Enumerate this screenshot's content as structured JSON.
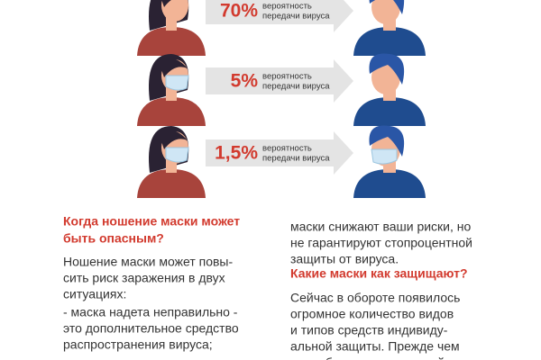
{
  "rows": [
    {
      "percent": "70%",
      "label": [
        "вероятность",
        "передачи вируса"
      ]
    },
    {
      "percent": "5%",
      "label": [
        "вероятность",
        "передачи вируса"
      ]
    },
    {
      "percent": "1,5%",
      "label": [
        "вероятность",
        "передачи вируса"
      ]
    }
  ],
  "left_column": {
    "heading": [
      "Когда ношение маски может",
      "быть опасным?"
    ],
    "paragraphs": [
      [
        "Ношение маски может повы-",
        "сить риск заражения в двух",
        "ситуациях:"
      ],
      [
        "- маска надета неправильно -",
        "это дополнительное средство",
        "распространения вируса;"
      ]
    ]
  },
  "right_column": {
    "intro": [
      "маски снижают ваши риски, но",
      "не гарантируют стопроцентной",
      "защиты от вируса."
    ],
    "heading": "Какие маски как защищают?",
    "paragraph": [
      "Сейчас в обороте появилось",
      "огромное количество видов",
      "и типов средств индивиду-",
      "альной защиты. Прежде чем",
      "подробно описать каждый из"
    ]
  }
}
